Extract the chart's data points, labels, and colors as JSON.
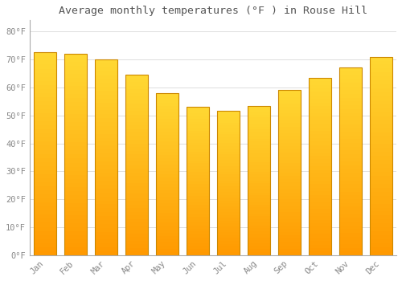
{
  "title": "Average monthly temperatures (°F ) in Rouse Hill",
  "months": [
    "Jan",
    "Feb",
    "Mar",
    "Apr",
    "May",
    "Jun",
    "Jul",
    "Aug",
    "Sep",
    "Oct",
    "Nov",
    "Dec"
  ],
  "values": [
    72.5,
    72.0,
    70.0,
    64.5,
    58.0,
    53.0,
    51.5,
    53.5,
    59.0,
    63.5,
    67.0,
    71.0
  ],
  "bar_color_top": "#FFCC33",
  "bar_color_bottom": "#FF9900",
  "bar_edge_color": "#CC8800",
  "background_color": "#FFFFFF",
  "plot_bg_color": "#FFFFFF",
  "grid_color": "#DDDDDD",
  "tick_label_color": "#888888",
  "title_color": "#555555",
  "ylim": [
    0,
    84
  ],
  "yticks": [
    0,
    10,
    20,
    30,
    40,
    50,
    60,
    70,
    80
  ],
  "ytick_labels": [
    "0°F",
    "10°F",
    "20°F",
    "30°F",
    "40°F",
    "50°F",
    "60°F",
    "70°F",
    "80°F"
  ]
}
